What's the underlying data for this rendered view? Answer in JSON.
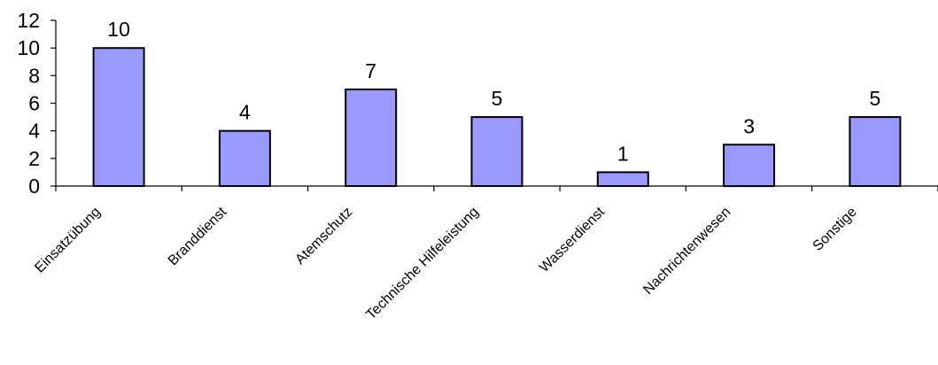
{
  "chart_data": {
    "type": "bar",
    "categories": [
      "Einsatzübung",
      "Branddienst",
      "Atemschutz",
      "Technische Hilfeleistung",
      "Wasserdienst",
      "Nachrichtenwesen",
      "Sonstige"
    ],
    "values": [
      10,
      4,
      7,
      5,
      1,
      3,
      5
    ],
    "data_labels": [
      "10",
      "4",
      "7",
      "5",
      "1",
      "3",
      "5"
    ],
    "ylim": [
      0,
      12
    ],
    "yticks": [
      0,
      2,
      4,
      6,
      8,
      10,
      12
    ],
    "ytick_labels": [
      "0",
      "2",
      "4",
      "6",
      "8",
      "10",
      "12"
    ],
    "grid": false,
    "legend": "none",
    "bar_color": "#9999ff",
    "bar_edge_color": "#000000"
  }
}
